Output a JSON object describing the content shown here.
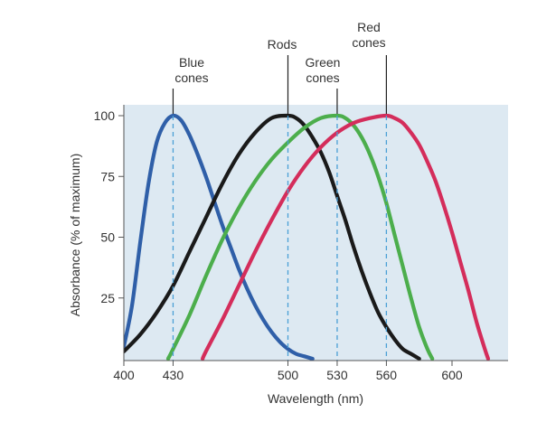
{
  "chart_data": {
    "type": "line",
    "xlabel": "Wavelength (nm)",
    "ylabel": "Absorbance (% of maximum)",
    "xlim": [
      400,
      620
    ],
    "ylim": [
      0,
      100
    ],
    "x_ticks": [
      400,
      430,
      500,
      530,
      560,
      600
    ],
    "y_ticks": [
      25,
      50,
      75,
      100
    ],
    "grid": false,
    "plot_background": "#dde9f2",
    "series": [
      {
        "name": "Blue cones",
        "label_lines": [
          "Blue",
          "cones"
        ],
        "peak": 430,
        "color": "#2f5fa8",
        "points": [
          [
            400,
            5
          ],
          [
            405,
            22
          ],
          [
            410,
            48
          ],
          [
            415,
            72
          ],
          [
            420,
            89
          ],
          [
            425,
            97
          ],
          [
            430,
            100
          ],
          [
            435,
            98
          ],
          [
            440,
            92
          ],
          [
            445,
            84
          ],
          [
            450,
            75
          ],
          [
            455,
            65
          ],
          [
            460,
            55
          ],
          [
            465,
            46
          ],
          [
            470,
            37
          ],
          [
            475,
            29
          ],
          [
            480,
            22
          ],
          [
            485,
            16
          ],
          [
            490,
            11
          ],
          [
            495,
            7
          ],
          [
            500,
            4
          ],
          [
            505,
            2
          ],
          [
            510,
            1
          ],
          [
            515,
            0
          ]
        ]
      },
      {
        "name": "Rods",
        "label_lines": [
          "Rods"
        ],
        "peak": 500,
        "color": "#1a1a1a",
        "points": [
          [
            400,
            3
          ],
          [
            410,
            10
          ],
          [
            420,
            19
          ],
          [
            430,
            30
          ],
          [
            440,
            44
          ],
          [
            450,
            58
          ],
          [
            460,
            72
          ],
          [
            470,
            84
          ],
          [
            480,
            93
          ],
          [
            490,
            99
          ],
          [
            500,
            100
          ],
          [
            505,
            99
          ],
          [
            510,
            96
          ],
          [
            515,
            91
          ],
          [
            520,
            85
          ],
          [
            525,
            77
          ],
          [
            530,
            67
          ],
          [
            535,
            57
          ],
          [
            540,
            46
          ],
          [
            545,
            36
          ],
          [
            550,
            27
          ],
          [
            555,
            19
          ],
          [
            560,
            13
          ],
          [
            565,
            8
          ],
          [
            570,
            4
          ],
          [
            575,
            2
          ],
          [
            580,
            0
          ]
        ]
      },
      {
        "name": "Green cones",
        "label_lines": [
          "Green",
          "cones"
        ],
        "peak": 530,
        "color": "#4cae4c",
        "points": [
          [
            427,
            0
          ],
          [
            430,
            4
          ],
          [
            440,
            18
          ],
          [
            450,
            34
          ],
          [
            460,
            49
          ],
          [
            470,
            62
          ],
          [
            480,
            73
          ],
          [
            490,
            82
          ],
          [
            500,
            89
          ],
          [
            510,
            95
          ],
          [
            520,
            99
          ],
          [
            530,
            100
          ],
          [
            535,
            99
          ],
          [
            540,
            96
          ],
          [
            545,
            91
          ],
          [
            550,
            84
          ],
          [
            555,
            75
          ],
          [
            560,
            64
          ],
          [
            565,
            51
          ],
          [
            570,
            38
          ],
          [
            575,
            25
          ],
          [
            580,
            13
          ],
          [
            585,
            4
          ],
          [
            588,
            0
          ]
        ]
      },
      {
        "name": "Red cones",
        "label_lines": [
          "Red",
          "cones"
        ],
        "peak": 560,
        "color": "#d42d5b",
        "points": [
          [
            448,
            0
          ],
          [
            450,
            3
          ],
          [
            460,
            16
          ],
          [
            470,
            30
          ],
          [
            480,
            44
          ],
          [
            490,
            57
          ],
          [
            500,
            69
          ],
          [
            510,
            79
          ],
          [
            520,
            87
          ],
          [
            530,
            93
          ],
          [
            540,
            97
          ],
          [
            550,
            99
          ],
          [
            560,
            100
          ],
          [
            565,
            99
          ],
          [
            570,
            97
          ],
          [
            575,
            93
          ],
          [
            580,
            88
          ],
          [
            585,
            81
          ],
          [
            590,
            73
          ],
          [
            595,
            63
          ],
          [
            600,
            52
          ],
          [
            605,
            40
          ],
          [
            610,
            28
          ],
          [
            615,
            15
          ],
          [
            620,
            4
          ],
          [
            622,
            0
          ]
        ]
      }
    ]
  }
}
